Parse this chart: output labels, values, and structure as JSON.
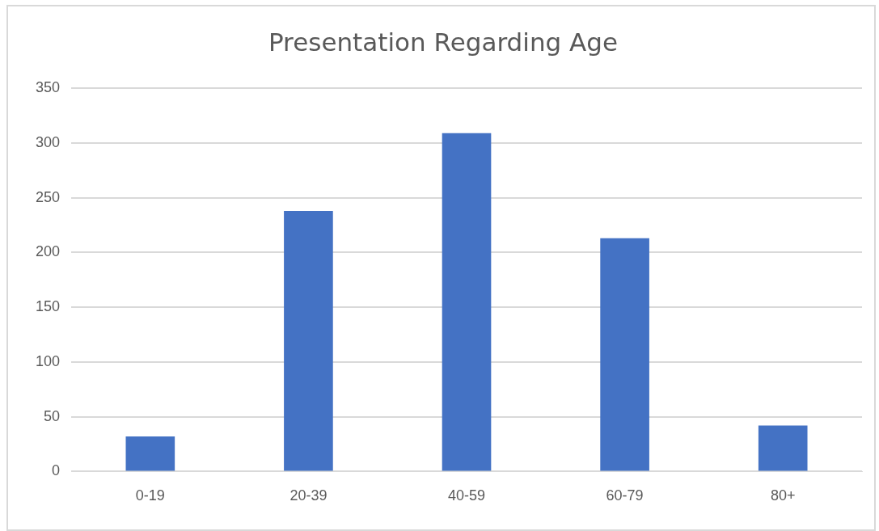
{
  "chart_data": {
    "type": "bar",
    "title": "Presentation Regarding Age",
    "categories": [
      "0-19",
      "20-39",
      "40-59",
      "60-79",
      "80+"
    ],
    "values": [
      32,
      238,
      309,
      213,
      42
    ],
    "color": "#4472c4",
    "ylim": [
      0,
      350
    ],
    "yticks": [
      0,
      50,
      100,
      150,
      200,
      250,
      300,
      350
    ],
    "grid": "y",
    "legend": false
  }
}
